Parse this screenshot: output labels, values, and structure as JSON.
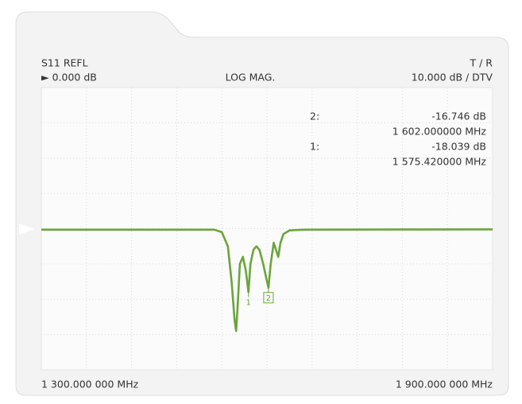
{
  "chart_data": {
    "type": "line",
    "title": "S11 REFL",
    "reference_label": "► 0.000 dB",
    "format": "LOG MAG.",
    "path": "T / R",
    "scale": "10.000 dB / DTV",
    "xlim": [
      1300,
      1900
    ],
    "ylim": [
      -40,
      40
    ],
    "xticks": [
      {
        "value": 1300,
        "label": "1 300.000  000 MHz"
      },
      {
        "value": 1900,
        "label": "1 900.000  000 MHz"
      }
    ],
    "grid": true,
    "series": [
      {
        "color": "#6aa53a",
        "x": [
          1300,
          1530,
          1540,
          1548,
          1553,
          1557,
          1559,
          1561,
          1564,
          1568,
          1572,
          1575.42,
          1578,
          1582,
          1586,
          1590,
          1595,
          1599,
          1602,
          1605,
          1609,
          1612,
          1615,
          1618,
          1622,
          1630,
          1650,
          1900
        ],
        "values": [
          -0.3,
          -0.3,
          -1,
          -5,
          -15,
          -26,
          -29,
          -22,
          -10,
          -8,
          -12,
          -18.039,
          -10,
          -6,
          -5,
          -6,
          -10,
          -14,
          -16.746,
          -10,
          -4,
          -6,
          -8,
          -4,
          -1.5,
          -0.5,
          -0.3,
          -0.2
        ]
      }
    ],
    "markers": [
      {
        "label": "2",
        "index_label": "2:",
        "x": 1602,
        "y": -16.746,
        "value_label": "-16.746 dB",
        "x_label": "1 602.000000  MHz"
      },
      {
        "label": "1",
        "index_label": "1:",
        "x": 1575.42,
        "y": -18.039,
        "value_label": "-18.039 dB",
        "x_label": "1 575.420000  MHz"
      }
    ]
  }
}
